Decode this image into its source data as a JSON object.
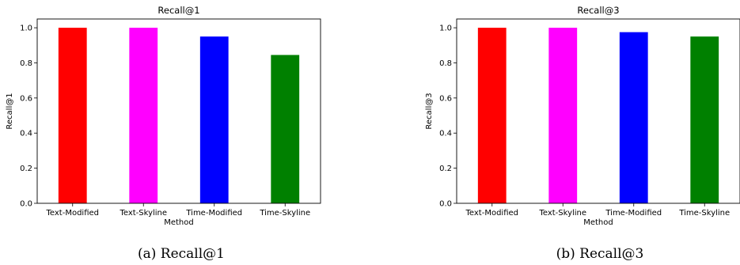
{
  "chart_data": [
    {
      "type": "bar",
      "title": "Recall@1",
      "xlabel": "Method",
      "ylabel": "Recall@1",
      "categories": [
        "Text-Modified",
        "Text-Skyline",
        "Time-Modified",
        "Time-Skyline"
      ],
      "values": [
        1.0,
        1.0,
        0.95,
        0.845
      ],
      "colors": [
        "#ff0000",
        "#ff00ff",
        "#0000ff",
        "#008000"
      ],
      "ylim": [
        0,
        1.05
      ],
      "yticks": [
        "0.0",
        "0.2",
        "0.4",
        "0.6",
        "0.8",
        "1.0"
      ],
      "grid": false,
      "caption": "(a) Recall@1"
    },
    {
      "type": "bar",
      "title": "Recall@3",
      "xlabel": "Method",
      "ylabel": "Recall@3",
      "categories": [
        "Text-Modified",
        "Text-Skyline",
        "Time-Modified",
        "Time-Skyline"
      ],
      "values": [
        1.0,
        1.0,
        0.975,
        0.95
      ],
      "colors": [
        "#ff0000",
        "#ff00ff",
        "#0000ff",
        "#008000"
      ],
      "ylim": [
        0,
        1.05
      ],
      "yticks": [
        "0.0",
        "0.2",
        "0.4",
        "0.6",
        "0.8",
        "1.0"
      ],
      "grid": false,
      "caption": "(b) Recall@3"
    }
  ]
}
